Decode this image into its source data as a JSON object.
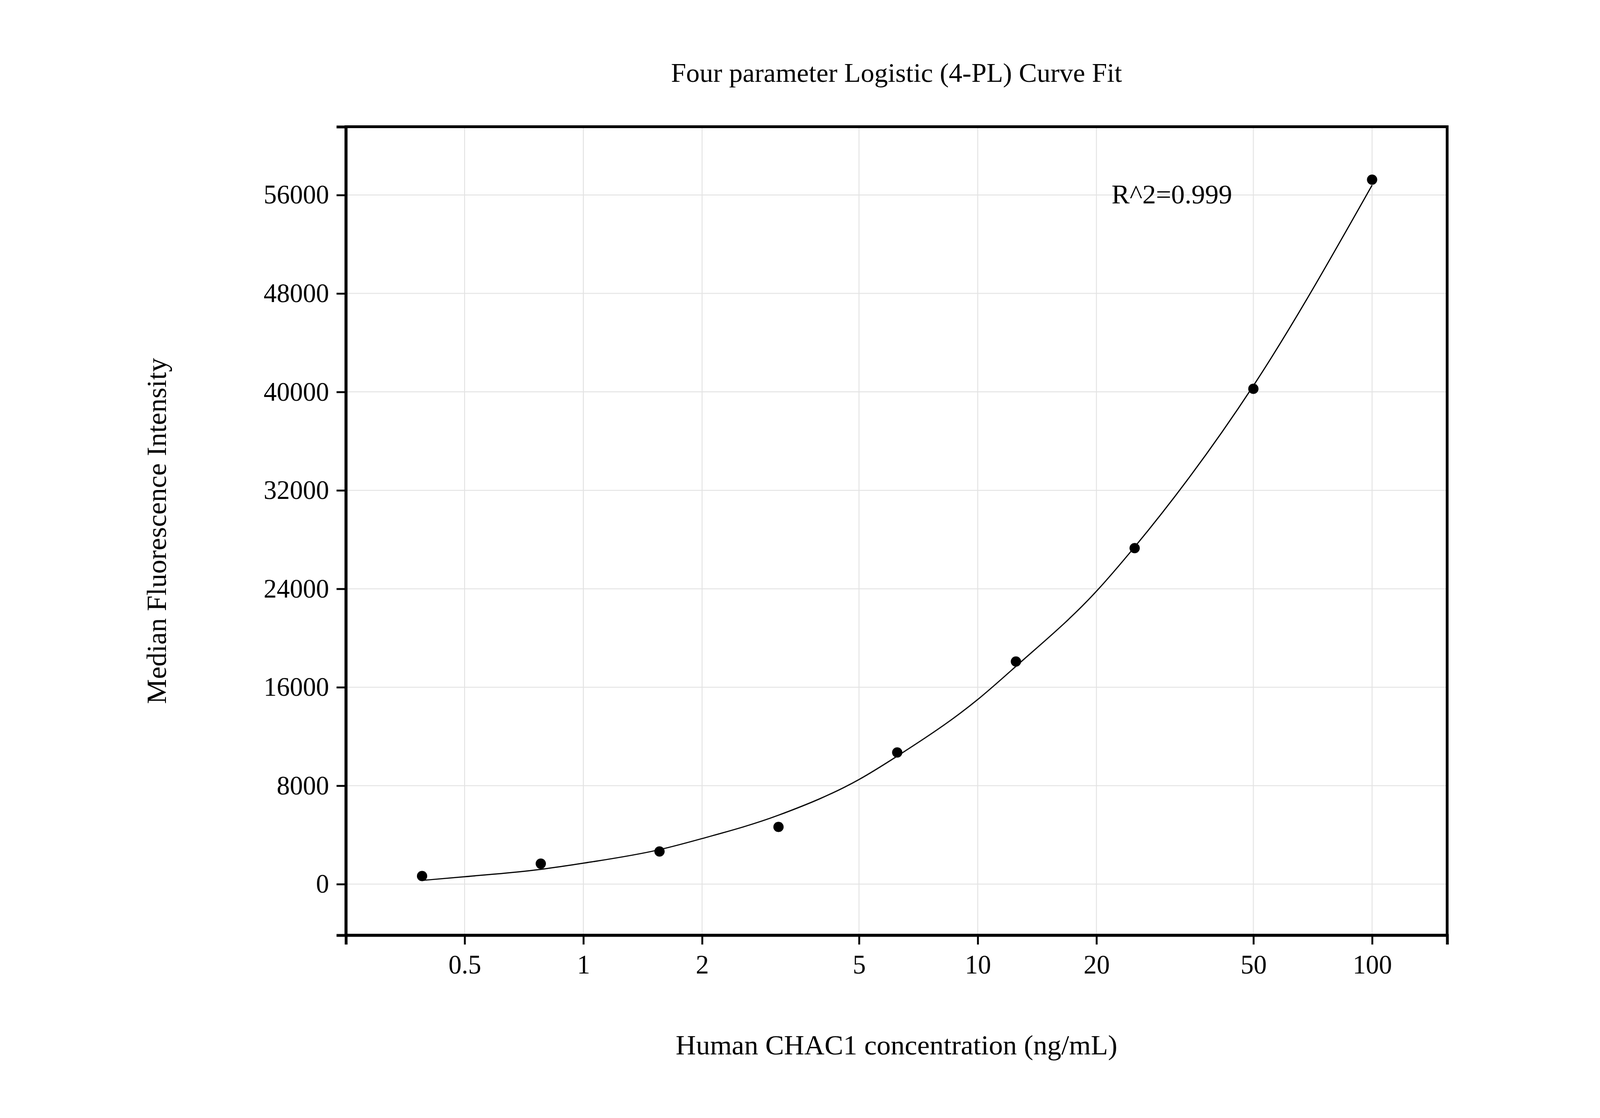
{
  "chart_data": {
    "type": "scatter",
    "title": "Four parameter Logistic (4-PL) Curve Fit",
    "x_label": "Human CHAC1 concentration (ng/mL)",
    "y_label": "Median Fluorescence Intensity",
    "annotation": "R^2=0.999",
    "log": "x",
    "grid": true,
    "xlim": [
      0.25,
      155
    ],
    "ylim": [
      -4150,
      61550
    ],
    "xticks": [
      0.5,
      1,
      2,
      5,
      10,
      20,
      50,
      100
    ],
    "yticks": [
      0,
      8000,
      16000,
      24000,
      32000,
      40000,
      48000,
      56000
    ],
    "series": [
      {
        "type": "scatter",
        "marker": "circle",
        "color": "#000000",
        "x": [
          0.39,
          0.78,
          1.56,
          3.125,
          6.25,
          12.5,
          25,
          50,
          100
        ],
        "values": [
          660,
          1660,
          2650,
          4650,
          10700,
          18090,
          27300,
          40250,
          57250
        ]
      },
      {
        "type": "line",
        "line_style": "solid",
        "color": "#000000",
        "x": [
          0.39,
          0.5,
          0.78,
          1,
          1.56,
          2,
          3.125,
          5,
          6.25,
          10,
          12.5,
          20,
          25,
          50,
          100
        ],
        "values": [
          300,
          600,
          1200,
          1700,
          2800,
          3700,
          5600,
          8500,
          10400,
          15000,
          17700,
          23800,
          27400,
          40500,
          56800
        ]
      }
    ]
  }
}
